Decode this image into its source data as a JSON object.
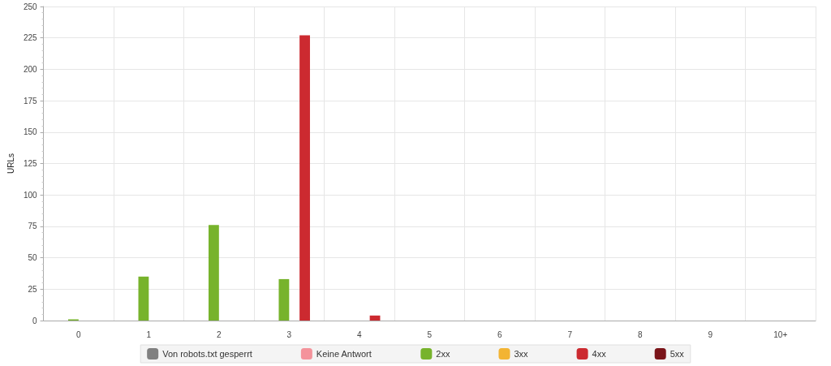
{
  "chart_data": {
    "type": "bar",
    "ylabel": "URLs",
    "categories": [
      "0",
      "1",
      "2",
      "3",
      "4",
      "5",
      "6",
      "7",
      "8",
      "9",
      "10+"
    ],
    "series": [
      {
        "name": "Von robots.txt gesperrt",
        "color": "#808080",
        "values": [
          0,
          0,
          0,
          0,
          0,
          0,
          0,
          0,
          0,
          0,
          0
        ]
      },
      {
        "name": "Keine Antwort",
        "color": "#f4939b",
        "values": [
          0,
          0,
          0,
          0,
          0,
          0,
          0,
          0,
          0,
          0,
          0
        ]
      },
      {
        "name": "2xx",
        "color": "#77b32c",
        "values": [
          1,
          35,
          76,
          33,
          0,
          0,
          0,
          0,
          0,
          0,
          0
        ]
      },
      {
        "name": "3xx",
        "color": "#f3b433",
        "values": [
          0,
          0,
          0,
          0,
          0,
          0,
          0,
          0,
          0,
          0,
          0
        ]
      },
      {
        "name": "4xx",
        "color": "#cc2a30",
        "values": [
          0,
          0,
          0,
          227,
          4,
          0,
          0,
          0,
          0,
          0,
          0
        ]
      },
      {
        "name": "5xx",
        "color": "#7a1419",
        "values": [
          0,
          0,
          0,
          0,
          0,
          0,
          0,
          0,
          0,
          0,
          0
        ]
      }
    ],
    "ylim": [
      0,
      250
    ],
    "yticks": [
      0,
      25,
      50,
      75,
      100,
      125,
      150,
      175,
      200,
      225,
      250
    ],
    "grid": true,
    "legend": "bottom"
  }
}
